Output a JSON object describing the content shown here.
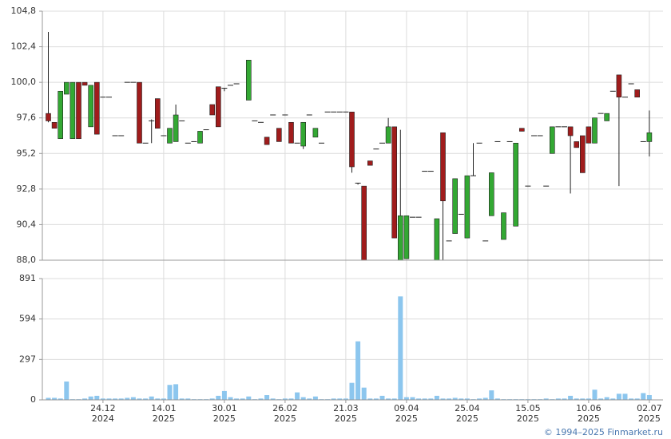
{
  "chart_data": [
    {
      "type": "candlestick",
      "categories": [
        null,
        null,
        null,
        null,
        null,
        null,
        null,
        null,
        null,
        "24.12",
        null,
        null,
        null,
        null,
        null,
        null,
        null,
        null,
        null,
        "14.01",
        null,
        null,
        null,
        null,
        null,
        null,
        null,
        null,
        null,
        "30.01",
        null,
        null,
        null,
        null,
        null,
        null,
        null,
        null,
        null,
        "26.02",
        null,
        null,
        null,
        null,
        null,
        null,
        null,
        null,
        null,
        "21.03",
        null,
        null,
        null,
        null,
        null,
        null,
        null,
        null,
        null,
        "09.04",
        null,
        null,
        null,
        null,
        null,
        null,
        null,
        null,
        null,
        "25.04",
        null,
        null,
        null,
        null,
        null,
        null,
        null,
        null,
        null,
        "15.05",
        null,
        null,
        null,
        null,
        null,
        null,
        null,
        null,
        null,
        "10.06",
        null,
        null,
        null,
        null,
        null,
        null,
        null,
        null,
        null,
        "02.07"
      ],
      "category_years": [
        null,
        null,
        null,
        null,
        null,
        null,
        null,
        null,
        null,
        "2024",
        null,
        null,
        null,
        null,
        null,
        null,
        null,
        null,
        null,
        "2025",
        null,
        null,
        null,
        null,
        null,
        null,
        null,
        null,
        null,
        "2025",
        null,
        null,
        null,
        null,
        null,
        null,
        null,
        null,
        null,
        "2025",
        null,
        null,
        null,
        null,
        null,
        null,
        null,
        null,
        null,
        "2025",
        null,
        null,
        null,
        null,
        null,
        null,
        null,
        null,
        null,
        "2025",
        null,
        null,
        null,
        null,
        null,
        null,
        null,
        null,
        null,
        "2025",
        null,
        null,
        null,
        null,
        null,
        null,
        null,
        null,
        null,
        "2025",
        null,
        null,
        null,
        null,
        null,
        null,
        null,
        null,
        null,
        "2025",
        null,
        null,
        null,
        null,
        null,
        null,
        null,
        null,
        null,
        "2025"
      ],
      "open": [
        97.9,
        97.3,
        96.2,
        99.2,
        96.2,
        100.0,
        100.0,
        97.0,
        100.0,
        99.0,
        99.0,
        96.4,
        96.4,
        100.0,
        100.0,
        100.0,
        95.9,
        97.4,
        98.9,
        96.4,
        95.9,
        96.0,
        97.4,
        95.9,
        96.0,
        95.9,
        96.8,
        98.5,
        99.7,
        99.6,
        99.8,
        99.9,
        null,
        98.8,
        97.4,
        97.3,
        96.3,
        97.8,
        96.9,
        97.8,
        97.3,
        95.9,
        95.7,
        97.8,
        96.3,
        95.9,
        98.0,
        98.0,
        98.0,
        98.0,
        98.0,
        93.2,
        93.0,
        94.7,
        95.5,
        95.9,
        95.9,
        97.0,
        88.0,
        88.1,
        90.9,
        90.9,
        94.0,
        94.0,
        88.0,
        96.6,
        89.3,
        89.8,
        91.1,
        89.5,
        93.7,
        95.9,
        89.3,
        91.0,
        96.0,
        89.4,
        96.0,
        90.3,
        96.9,
        93.0,
        96.4,
        96.4,
        93.0,
        95.2,
        97.0,
        97.0,
        97.0,
        96.0,
        96.4,
        97.0,
        95.9,
        97.9,
        97.4,
        99.4,
        100.5,
        99.0,
        99.9,
        99.5,
        96.0,
        96.0
      ],
      "high": [
        103.4,
        97.3,
        99.4,
        100.0,
        100.0,
        100.0,
        100.0,
        99.8,
        100.0,
        99.0,
        99.0,
        96.4,
        96.4,
        100.0,
        100.0,
        100.0,
        95.9,
        97.5,
        98.9,
        96.4,
        96.9,
        98.5,
        97.4,
        95.9,
        96.0,
        96.7,
        96.8,
        98.5,
        99.7,
        99.6,
        99.8,
        99.9,
        null,
        101.5,
        97.4,
        97.3,
        96.3,
        97.8,
        96.9,
        97.8,
        97.3,
        95.9,
        97.3,
        97.8,
        96.9,
        95.9,
        98.0,
        98.0,
        98.0,
        98.0,
        98.0,
        93.2,
        93.0,
        94.7,
        95.5,
        95.9,
        97.6,
        97.0,
        96.8,
        91.0,
        90.9,
        90.9,
        94.0,
        94.0,
        90.8,
        96.6,
        89.3,
        93.5,
        91.1,
        93.7,
        95.9,
        95.9,
        89.3,
        93.9,
        96.0,
        91.2,
        96.0,
        95.9,
        96.9,
        93.0,
        96.4,
        96.4,
        93.0,
        97.0,
        97.0,
        97.0,
        97.0,
        96.0,
        96.4,
        97.0,
        97.6,
        97.9,
        97.9,
        99.4,
        100.5,
        99.0,
        99.9,
        99.5,
        96.0,
        98.1
      ],
      "low": [
        97.3,
        96.9,
        96.2,
        99.2,
        96.2,
        96.2,
        99.8,
        97.0,
        96.5,
        99.0,
        99.0,
        96.4,
        96.4,
        100.0,
        100.0,
        95.9,
        95.9,
        95.9,
        96.9,
        96.4,
        95.9,
        96.0,
        97.4,
        95.9,
        96.0,
        95.9,
        96.8,
        97.8,
        97.0,
        99.4,
        99.8,
        99.9,
        null,
        98.8,
        97.4,
        97.3,
        95.8,
        97.8,
        96.0,
        97.8,
        95.9,
        95.9,
        95.5,
        97.8,
        96.3,
        95.9,
        98.0,
        98.0,
        98.0,
        98.0,
        93.9,
        93.1,
        88.0,
        94.4,
        95.5,
        95.9,
        95.9,
        89.5,
        88.0,
        88.1,
        90.9,
        90.9,
        94.0,
        94.0,
        88.0,
        88.0,
        89.3,
        89.8,
        91.1,
        89.5,
        93.7,
        95.9,
        89.3,
        91.0,
        96.0,
        89.4,
        96.0,
        90.3,
        96.7,
        93.0,
        96.4,
        96.4,
        93.0,
        95.2,
        97.0,
        97.0,
        92.5,
        95.6,
        93.9,
        95.9,
        95.9,
        97.9,
        97.4,
        99.4,
        93.0,
        99.0,
        99.9,
        99.0,
        96.0,
        95.0
      ],
      "close": [
        97.4,
        96.9,
        99.4,
        100.0,
        100.0,
        96.2,
        99.8,
        99.8,
        96.5,
        99.0,
        99.0,
        96.4,
        96.4,
        100.0,
        100.0,
        95.9,
        95.9,
        97.4,
        96.9,
        96.4,
        96.9,
        97.8,
        97.4,
        95.9,
        96.0,
        96.7,
        96.8,
        97.8,
        97.0,
        99.6,
        99.8,
        99.9,
        null,
        101.5,
        97.4,
        97.3,
        95.8,
        97.8,
        96.0,
        97.8,
        95.9,
        95.9,
        97.3,
        97.8,
        96.9,
        95.9,
        98.0,
        98.0,
        98.0,
        98.0,
        94.3,
        93.2,
        88.0,
        94.4,
        95.5,
        95.9,
        97.0,
        89.5,
        91.0,
        91.0,
        90.9,
        90.9,
        94.0,
        94.0,
        90.8,
        92.0,
        89.3,
        93.5,
        91.1,
        93.7,
        93.7,
        95.9,
        89.3,
        93.9,
        96.0,
        91.2,
        96.0,
        95.9,
        96.7,
        93.0,
        96.4,
        96.4,
        93.0,
        97.0,
        97.0,
        97.0,
        96.4,
        95.6,
        93.9,
        95.9,
        97.6,
        97.9,
        97.9,
        99.4,
        99.0,
        99.0,
        99.9,
        99.0,
        96.0,
        96.6
      ],
      "up_color": "#33a833",
      "down_color": "#a01c1c",
      "flat_color": "#222222",
      "ylim": [
        88.0,
        104.8
      ],
      "yticks": [
        {
          "value": 88.0,
          "label": "88,0"
        },
        {
          "value": 90.4,
          "label": "90,4"
        },
        {
          "value": 92.8,
          "label": "92,8"
        },
        {
          "value": 95.2,
          "label": "95,2"
        },
        {
          "value": 97.6,
          "label": "97,6"
        },
        {
          "value": 100.0,
          "label": "100,0"
        },
        {
          "value": 102.4,
          "label": "102,4"
        },
        {
          "value": 104.8,
          "label": "104,8"
        }
      ],
      "grid": true
    },
    {
      "type": "bar",
      "values": [
        15,
        15,
        10,
        135,
        5,
        5,
        10,
        25,
        30,
        10,
        10,
        10,
        10,
        15,
        20,
        10,
        10,
        25,
        10,
        10,
        110,
        115,
        10,
        10,
        5,
        5,
        5,
        10,
        30,
        65,
        20,
        10,
        10,
        25,
        5,
        10,
        35,
        10,
        5,
        10,
        10,
        55,
        20,
        10,
        25,
        5,
        5,
        10,
        10,
        10,
        125,
        430,
        90,
        10,
        10,
        30,
        10,
        10,
        760,
        20,
        20,
        10,
        10,
        10,
        30,
        10,
        10,
        15,
        10,
        10,
        5,
        10,
        15,
        70,
        10,
        5,
        5,
        5,
        5,
        5,
        5,
        5,
        10,
        5,
        10,
        10,
        30,
        10,
        10,
        10,
        75,
        10,
        20,
        10,
        45,
        45,
        10,
        10,
        50,
        35
      ],
      "color": "#8cc6ee",
      "ylim": [
        0,
        891
      ],
      "yticks": [
        0,
        297,
        594,
        891
      ],
      "grid": true
    }
  ],
  "footer": "© 1994–2025 Finmarket.ru"
}
